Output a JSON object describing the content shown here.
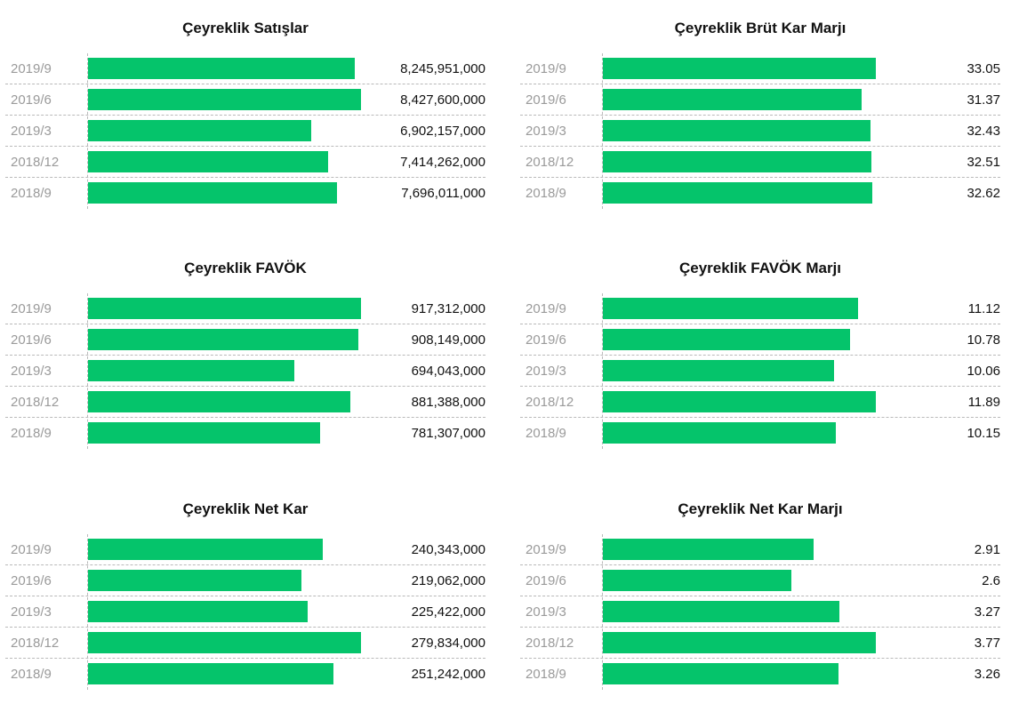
{
  "accent_color": "#05c46b",
  "chart_data": [
    {
      "type": "bar",
      "title": "Çeyreklik Satışlar",
      "categories": [
        "2019/9",
        "2019/6",
        "2019/3",
        "2018/12",
        "2018/9"
      ],
      "values": [
        8245951000,
        8427600000,
        6902157000,
        7414262000,
        7696011000
      ],
      "value_labels": [
        "8,245,951,000",
        "8,427,600,000",
        "6,902,157,000",
        "7,414,262,000",
        "7,696,011,000"
      ]
    },
    {
      "type": "bar",
      "title": "Çeyreklik Brüt Kar Marjı",
      "categories": [
        "2019/9",
        "2019/6",
        "2019/3",
        "2018/12",
        "2018/9"
      ],
      "values": [
        33.05,
        31.37,
        32.43,
        32.51,
        32.62
      ],
      "value_labels": [
        "33.05",
        "31.37",
        "32.43",
        "32.51",
        "32.62"
      ]
    },
    {
      "type": "bar",
      "title": "Çeyreklik FAVÖK",
      "categories": [
        "2019/9",
        "2019/6",
        "2019/3",
        "2018/12",
        "2018/9"
      ],
      "values": [
        917312000,
        908149000,
        694043000,
        881388000,
        781307000
      ],
      "value_labels": [
        "917,312,000",
        "908,149,000",
        "694,043,000",
        "881,388,000",
        "781,307,000"
      ]
    },
    {
      "type": "bar",
      "title": "Çeyreklik FAVÖK Marjı",
      "categories": [
        "2019/9",
        "2019/6",
        "2019/3",
        "2018/12",
        "2018/9"
      ],
      "values": [
        11.12,
        10.78,
        10.06,
        11.89,
        10.15
      ],
      "value_labels": [
        "11.12",
        "10.78",
        "10.06",
        "11.89",
        "10.15"
      ]
    },
    {
      "type": "bar",
      "title": "Çeyreklik Net Kar",
      "categories": [
        "2019/9",
        "2019/6",
        "2019/3",
        "2018/12",
        "2018/9"
      ],
      "values": [
        240343000,
        219062000,
        225422000,
        279834000,
        251242000
      ],
      "value_labels": [
        "240,343,000",
        "219,062,000",
        "225,422,000",
        "279,834,000",
        "251,242,000"
      ]
    },
    {
      "type": "bar",
      "title": "Çeyreklik Net Kar Marjı",
      "categories": [
        "2019/9",
        "2019/6",
        "2019/3",
        "2018/12",
        "2018/9"
      ],
      "values": [
        2.91,
        2.6,
        3.27,
        3.77,
        3.26
      ],
      "value_labels": [
        "2.91",
        "2.6",
        "3.27",
        "3.77",
        "3.26"
      ]
    }
  ]
}
